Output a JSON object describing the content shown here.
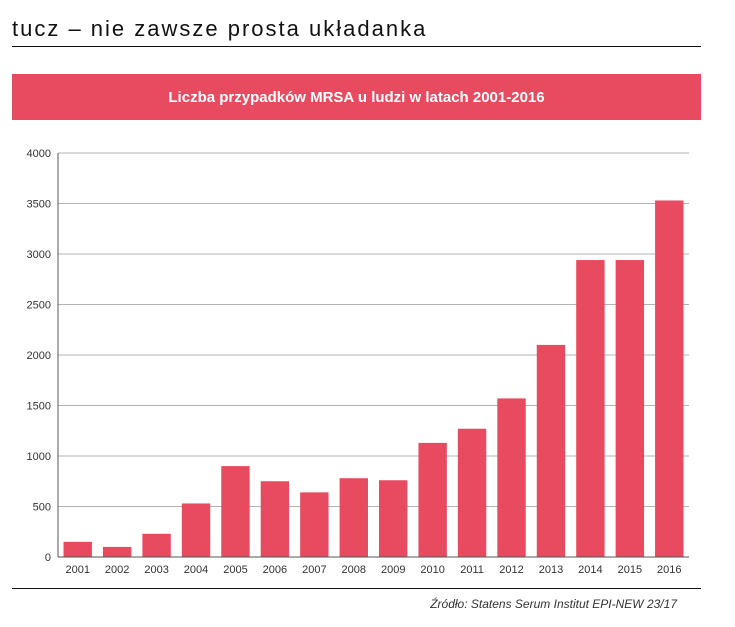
{
  "header": {
    "title": "tucz – nie zawsze prosta układanka"
  },
  "colors": {
    "bar": "#e84a5f",
    "banner": "#e84a5f",
    "grid": "#b3b3b3",
    "axis": "#555555"
  },
  "chart_data": {
    "type": "bar",
    "title": "Liczba przypadków MRSA u ludzi w latach 2001-2016",
    "xlabel": "",
    "ylabel": "",
    "categories": [
      "2001",
      "2002",
      "2003",
      "2004",
      "2005",
      "2006",
      "2007",
      "2008",
      "2009",
      "2010",
      "2011",
      "2012",
      "2013",
      "2014",
      "2015",
      "2016"
    ],
    "values": [
      150,
      100,
      230,
      530,
      900,
      750,
      640,
      780,
      760,
      1130,
      1270,
      1570,
      2100,
      2940,
      2940,
      3530
    ],
    "ylim": [
      0,
      4000
    ],
    "yticks": [
      0,
      500,
      1000,
      1500,
      2000,
      2500,
      3000,
      3500,
      4000
    ],
    "grid": true
  },
  "footer": {
    "source": "Źródło: Statens Serum Institut EPI-NEW 23/17"
  }
}
